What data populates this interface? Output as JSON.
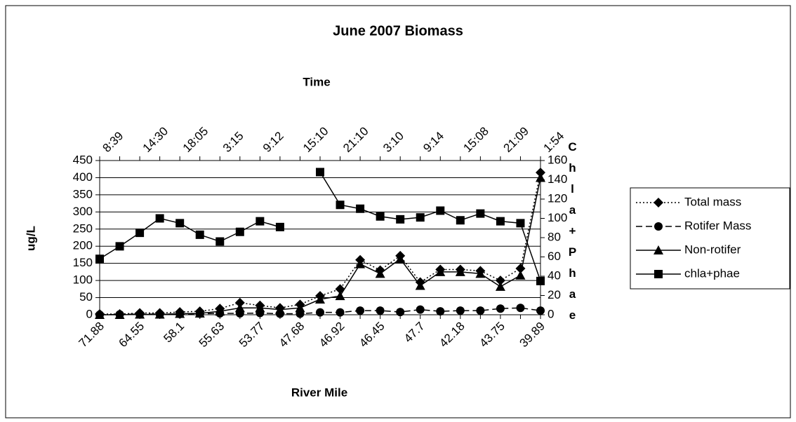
{
  "chart_data": {
    "type": "line",
    "title": "June 2007 Biomass",
    "x2label": "Time",
    "xlabel": "River Mile",
    "ylabel": "ug/L",
    "y2label": "Chla+Phae",
    "categories": [
      "71.88",
      null,
      "64.55",
      null,
      "58.1",
      null,
      "55.63",
      null,
      "53.77",
      null,
      "47.68",
      null,
      "46.92",
      null,
      "46.45",
      null,
      "47.7",
      null,
      "42.18",
      null,
      "43.75",
      null,
      "39.89"
    ],
    "x2_categories": [
      "8:39",
      null,
      "14:30",
      null,
      "18:05",
      null,
      "3:15",
      null,
      "9:12",
      null,
      "15:10",
      null,
      "21:10",
      null,
      "3:10",
      null,
      "9:14",
      null,
      "15:08",
      null,
      "21:09",
      null,
      "1:54"
    ],
    "ylim": [
      0,
      450
    ],
    "yticks": [
      0,
      50,
      100,
      150,
      200,
      250,
      300,
      350,
      400,
      450
    ],
    "y2lim": [
      0,
      160
    ],
    "y2ticks": [
      0,
      20,
      40,
      60,
      80,
      100,
      120,
      140,
      160
    ],
    "grid": true,
    "legend": "right",
    "series": [
      {
        "name": "Total mass",
        "color": "#000000",
        "dash": "dotted",
        "marker": "diamond",
        "values": [
          2,
          2,
          5,
          5,
          8,
          10,
          18,
          35,
          27,
          20,
          30,
          55,
          75,
          160,
          130,
          172,
          95,
          132,
          132,
          128,
          100,
          135,
          415
        ]
      },
      {
        "name": "Rotifer Mass",
        "color": "#000000",
        "dash": "dashed",
        "marker": "circle",
        "values": [
          0,
          1,
          2,
          2,
          2,
          3,
          4,
          4,
          5,
          3,
          3,
          7,
          7,
          12,
          12,
          8,
          15,
          10,
          12,
          12,
          18,
          20,
          12
        ]
      },
      {
        "name": "Non-rotifer",
        "color": "#000000",
        "dash": "solid",
        "marker": "triangle",
        "values": [
          0,
          0,
          1,
          1,
          3,
          4,
          10,
          20,
          20,
          15,
          20,
          45,
          55,
          148,
          120,
          163,
          85,
          125,
          125,
          120,
          82,
          115,
          400
        ]
      },
      {
        "name": "chla+phae",
        "color": "#000000",
        "dash": "solid",
        "marker": "square",
        "axis": "y2",
        "values": [
          58,
          71,
          85,
          100,
          95,
          83,
          76,
          86,
          97,
          91,
          null,
          148,
          114,
          110,
          102,
          99,
          101,
          108,
          98,
          105,
          97,
          95,
          35
        ]
      }
    ]
  }
}
